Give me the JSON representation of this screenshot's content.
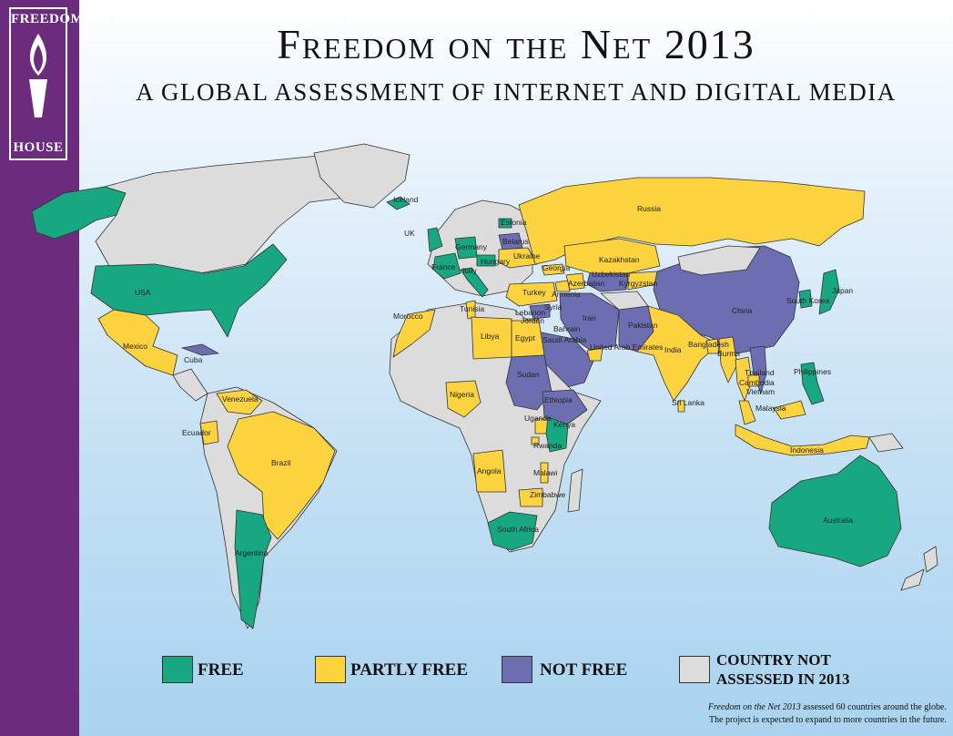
{
  "logo": {
    "line1": "FREEDOM",
    "line2": "HOUSE"
  },
  "title": "Freedom on the Net 2013",
  "subtitle": "A GLOBAL ASSESSMENT OF INTERNET AND DIGITAL MEDIA",
  "colors": {
    "free": "#17a882",
    "partly_free": "#fdd33f",
    "not_free": "#6d6db2",
    "not_assessed": "#dcdcdc",
    "sidebar": "#6b2c7e"
  },
  "countries": {
    "iceland": "Iceland",
    "uk": "UK",
    "estonia": "Estonia",
    "russia": "Russia",
    "belarus": "Belarus",
    "germany": "Germany",
    "hungary": "Hungary",
    "ukraine": "Ukraine",
    "france": "France",
    "italy": "Italy",
    "georgia": "Georgia",
    "kazakhstan": "Kazakhstan",
    "uzbekistan": "Uzbekistan",
    "azerbaijan": "Azerbaijan",
    "kyrgyzstan": "Kyrgyzstan",
    "armenia": "Armenia",
    "turkey": "Turkey",
    "usa": "USA",
    "morocco": "Morocco",
    "tunisia": "Tunisia",
    "syria": "Syria",
    "lebanon": "Lebanon",
    "jordan": "Jordan",
    "libya": "Libya",
    "egypt": "Egypt",
    "iran": "Iran",
    "bahrain": "Bahrain",
    "saudi_arabia": "Saudi Arabia",
    "uae": "United Arab Emirates",
    "pakistan": "Pakistan",
    "china": "China",
    "south_korea": "South Korea",
    "japan": "Japan",
    "mexico": "Mexico",
    "cuba": "Cuba",
    "india": "India",
    "bangladesh": "Bangladesh",
    "burma": "Burma",
    "thailand": "Thailand",
    "cambodia": "Cambodia",
    "vietnam": "Vietnam",
    "philippines": "Philippines",
    "malaysia": "Malaysia",
    "sri_lanka": "Sri Lanka",
    "sudan": "Sudan",
    "ethiopia": "Ethiopia",
    "nigeria": "Nigeria",
    "uganda": "Uganda",
    "kenya": "Kenya",
    "rwanda": "Rwanda",
    "venezuela": "Venezuela",
    "ecuador": "Ecuador",
    "brazil": "Brazil",
    "angola": "Angola",
    "malawi": "Malawi",
    "zimbabwe": "Zimbabwe",
    "indonesia": "Indonesia",
    "argentina": "Argentina",
    "south_africa": "South Africa",
    "australia": "Australia"
  },
  "legend": {
    "free": "FREE",
    "partly_free": "PARTLY FREE",
    "not_free": "NOT FREE",
    "not_assessed_1": "COUNTRY NOT",
    "not_assessed_2": "ASSESSED IN 2013"
  },
  "footnote": {
    "italic": "Freedom on the Net 2013",
    "line1_rest": " assessed 60 countries around the globe.",
    "line2": "The project is expected to expand to more countries in the future."
  }
}
